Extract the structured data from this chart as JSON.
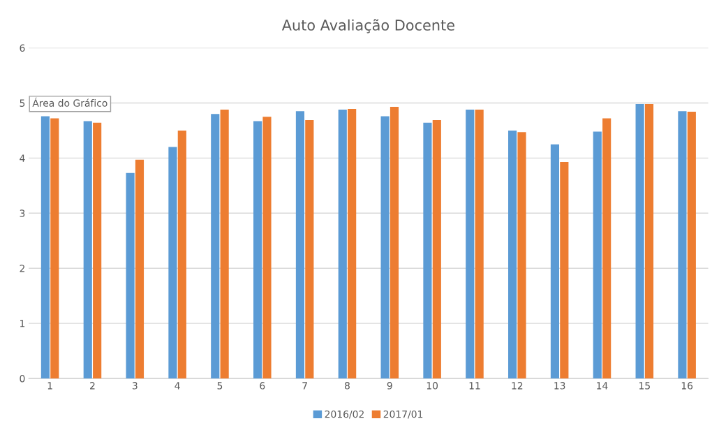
{
  "chart_data": {
    "type": "bar",
    "title": "Auto Avaliação Docente",
    "categories": [
      "1",
      "2",
      "3",
      "4",
      "5",
      "6",
      "7",
      "8",
      "9",
      "10",
      "11",
      "12",
      "13",
      "14",
      "15",
      "16"
    ],
    "series": [
      {
        "name": "2016/02",
        "color": "#5b9bd5",
        "values": [
          4.76,
          4.67,
          3.73,
          4.2,
          4.8,
          4.67,
          4.85,
          4.88,
          4.76,
          4.64,
          4.88,
          4.5,
          4.25,
          4.48,
          4.98,
          4.85
        ]
      },
      {
        "name": "2017/01",
        "color": "#ed7d31",
        "values": [
          4.72,
          4.64,
          3.97,
          4.5,
          4.88,
          4.75,
          4.69,
          4.89,
          4.93,
          4.69,
          4.88,
          4.47,
          3.93,
          4.72,
          4.98,
          4.84
        ]
      }
    ],
    "ylim": [
      0,
      6
    ],
    "yticks": [
      0,
      1,
      2,
      3,
      4,
      5,
      6
    ],
    "grid": "y",
    "legend": "bottom",
    "annotations": [
      "Área do Gráfico"
    ]
  }
}
